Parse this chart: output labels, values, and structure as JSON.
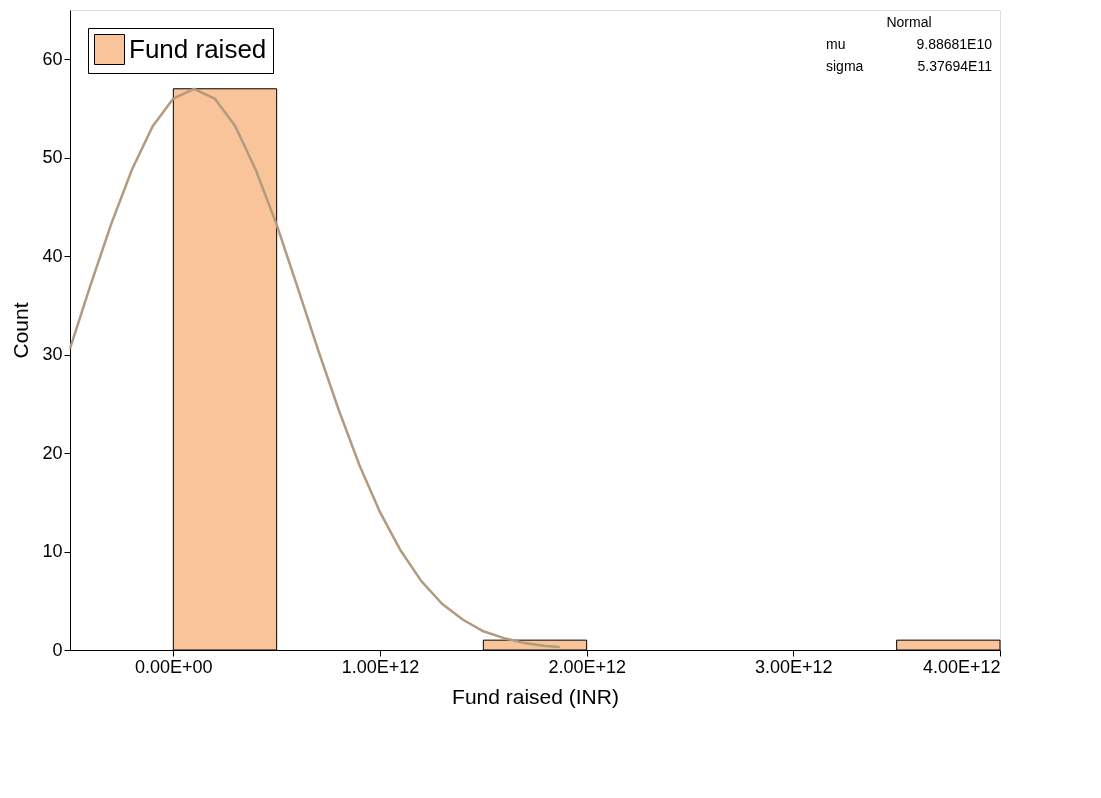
{
  "chart_data": {
    "type": "histogram",
    "xlabel": "Fund raised (INR)",
    "ylabel": "Count",
    "bins": [
      0,
      500000000000,
      1000000000000,
      1500000000000,
      2000000000000,
      2500000000000,
      3000000000000,
      3500000000000,
      4000000000000
    ],
    "series": [
      {
        "name": "Fund raised",
        "color": "#f9c49a",
        "values": [
          57,
          0,
          0,
          1,
          0,
          0,
          0,
          1
        ]
      },
      {
        "type": "line",
        "color": "#b39a7e",
        "x": [
          -500000000000,
          -400000000000,
          -300000000000,
          -200000000000,
          -100000000000,
          0,
          100000000000,
          200000000000,
          300000000000,
          400000000000,
          500000000000,
          600000000000,
          700000000000,
          800000000000,
          900000000000,
          1000000000000,
          1100000000000,
          1200000000000,
          1300000000000,
          1400000000000,
          1500000000000,
          1600000000000,
          1700000000000,
          1800000000000,
          1870000000000
        ],
        "values": [
          30.6,
          37.1,
          43.3,
          48.8,
          53.2,
          56.0,
          57.0,
          56.0,
          53.2,
          48.7,
          43.2,
          36.9,
          30.5,
          24.4,
          18.8,
          14.0,
          10.1,
          7.0,
          4.7,
          3.1,
          1.9,
          1.2,
          0.7,
          0.4,
          0.3
        ]
      }
    ],
    "xlim": [
      -500000000000,
      4000000000000
    ],
    "xticks": [
      {
        "value": 0,
        "label": "0.00E+00"
      },
      {
        "value": 1000000000000,
        "label": "1.00E+12"
      },
      {
        "value": 2000000000000,
        "label": "2.00E+12"
      },
      {
        "value": 3000000000000,
        "label": "3.00E+12"
      },
      {
        "value": 4000000000000,
        "label": "4.00E+12"
      }
    ],
    "ylim": [
      0,
      65
    ],
    "yticks": [
      0,
      10,
      20,
      30,
      40,
      50,
      60
    ],
    "grid": false,
    "legend": "top left",
    "annotations": [
      "Normal",
      "mu",
      "9.88681E10",
      "sigma",
      "5.37694E11"
    ]
  }
}
